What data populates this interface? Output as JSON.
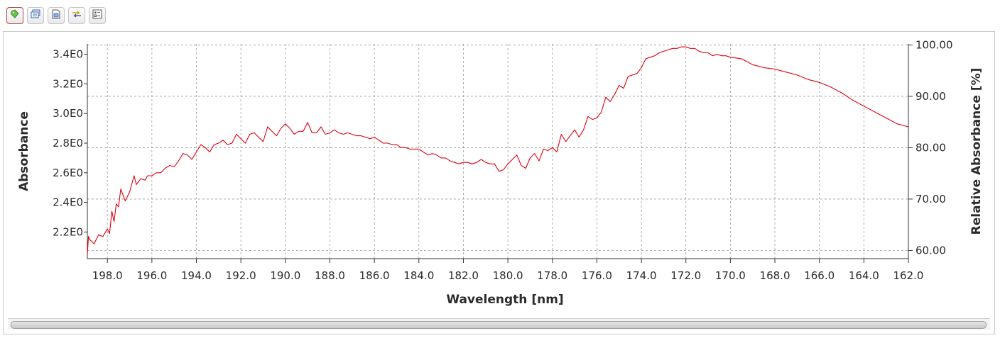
{
  "toolbar": {
    "buttons": [
      {
        "icon": "tag-icon"
      },
      {
        "icon": "notes-icon"
      },
      {
        "icon": "document-icon"
      },
      {
        "icon": "switch-arrows-icon"
      },
      {
        "icon": "settings-list-icon"
      }
    ]
  },
  "colors": {
    "series": "#e3000f",
    "grid": "#9a9a9a",
    "axis": "#333333"
  },
  "chart_data": {
    "type": "line",
    "title": "",
    "xlabel": "Wavelength [nm]",
    "ylabel": "Absorbance",
    "ylabel_right": "Relative Absorbance [%]",
    "xlim": [
      198.9,
      162.0
    ],
    "x_reversed": true,
    "ylim": [
      2.02,
      3.47
    ],
    "ylim_right": [
      58.4,
      100.2
    ],
    "x_ticks": [
      198.0,
      196.0,
      194.0,
      192.0,
      190.0,
      188.0,
      186.0,
      184.0,
      182.0,
      180.0,
      178.0,
      176.0,
      174.0,
      172.0,
      170.0,
      168.0,
      166.0,
      164.0,
      162.0
    ],
    "x_tick_labels": [
      "198.0",
      "196.0",
      "194.0",
      "192.0",
      "190.0",
      "188.0",
      "186.0",
      "184.0",
      "182.0",
      "180.0",
      "178.0",
      "176.0",
      "174.0",
      "172.0",
      "170.0",
      "168.0",
      "166.0",
      "164.0",
      "162.0"
    ],
    "y_ticks": [
      2.2,
      2.4,
      2.6,
      2.8,
      3.0,
      3.2,
      3.4
    ],
    "y_tick_labels": [
      "2.2E0",
      "2.4E0",
      "2.6E0",
      "2.8E0",
      "3.0E0",
      "3.2E0",
      "3.4E0"
    ],
    "y_right_ticks": [
      60,
      70,
      80,
      90,
      100
    ],
    "y_right_tick_labels": [
      "60.00",
      "70.00",
      "80.00",
      "90.00",
      "100.00"
    ],
    "grid": true,
    "series": [
      {
        "x": [
          198.9,
          198.85,
          198.8,
          198.6,
          198.4,
          198.2,
          198.0,
          197.9,
          197.8,
          197.7,
          197.6,
          197.5,
          197.4,
          197.2,
          197.0,
          196.8,
          196.7,
          196.5,
          196.3,
          196.2,
          196.0,
          195.8,
          195.6,
          195.4,
          195.2,
          195.0,
          194.8,
          194.6,
          194.4,
          194.2,
          194.0,
          193.8,
          193.6,
          193.4,
          193.2,
          193.0,
          192.8,
          192.6,
          192.4,
          192.2,
          192.0,
          191.8,
          191.6,
          191.4,
          191.2,
          191.0,
          190.8,
          190.6,
          190.4,
          190.2,
          190.0,
          189.8,
          189.6,
          189.4,
          189.2,
          189.0,
          188.8,
          188.6,
          188.4,
          188.2,
          188.0,
          187.8,
          187.6,
          187.4,
          187.2,
          187.0,
          186.8,
          186.6,
          186.4,
          186.2,
          186.0,
          185.8,
          185.6,
          185.4,
          185.2,
          185.0,
          184.8,
          184.6,
          184.4,
          184.2,
          184.0,
          183.8,
          183.6,
          183.4,
          183.2,
          183.0,
          182.8,
          182.6,
          182.4,
          182.2,
          182.0,
          181.8,
          181.6,
          181.4,
          181.2,
          181.0,
          180.8,
          180.6,
          180.4,
          180.2,
          180.0,
          179.8,
          179.6,
          179.4,
          179.2,
          179.0,
          178.8,
          178.6,
          178.4,
          178.2,
          178.0,
          177.8,
          177.6,
          177.4,
          177.2,
          177.0,
          176.8,
          176.6,
          176.4,
          176.2,
          176.0,
          175.8,
          175.6,
          175.4,
          175.2,
          175.0,
          174.8,
          174.6,
          174.4,
          174.2,
          174.0,
          173.8,
          173.6,
          173.4,
          173.2,
          173.0,
          172.8,
          172.6,
          172.4,
          172.2,
          172.0,
          171.8,
          171.6,
          171.4,
          171.2,
          171.0,
          170.8,
          170.6,
          170.4,
          170.2,
          170.0,
          169.5,
          169.0,
          168.5,
          168.0,
          167.5,
          167.0,
          166.5,
          166.0,
          165.5,
          165.0,
          164.5,
          164.0,
          163.5,
          163.0,
          162.5,
          162.0
        ],
        "y": [
          2.05,
          2.17,
          2.15,
          2.12,
          2.18,
          2.17,
          2.22,
          2.19,
          2.34,
          2.27,
          2.39,
          2.37,
          2.49,
          2.41,
          2.47,
          2.58,
          2.52,
          2.56,
          2.55,
          2.58,
          2.58,
          2.6,
          2.6,
          2.63,
          2.65,
          2.64,
          2.68,
          2.73,
          2.72,
          2.69,
          2.74,
          2.79,
          2.77,
          2.74,
          2.79,
          2.8,
          2.82,
          2.79,
          2.8,
          2.86,
          2.83,
          2.8,
          2.86,
          2.87,
          2.84,
          2.81,
          2.91,
          2.88,
          2.85,
          2.9,
          2.93,
          2.9,
          2.86,
          2.88,
          2.88,
          2.94,
          2.87,
          2.87,
          2.91,
          2.86,
          2.87,
          2.89,
          2.87,
          2.86,
          2.87,
          2.86,
          2.85,
          2.85,
          2.84,
          2.83,
          2.84,
          2.82,
          2.8,
          2.8,
          2.79,
          2.79,
          2.77,
          2.77,
          2.76,
          2.76,
          2.76,
          2.74,
          2.72,
          2.73,
          2.72,
          2.7,
          2.7,
          2.68,
          2.67,
          2.66,
          2.67,
          2.67,
          2.66,
          2.67,
          2.69,
          2.67,
          2.66,
          2.66,
          2.61,
          2.62,
          2.66,
          2.69,
          2.72,
          2.65,
          2.63,
          2.7,
          2.73,
          2.68,
          2.76,
          2.75,
          2.77,
          2.74,
          2.86,
          2.81,
          2.85,
          2.89,
          2.84,
          2.89,
          2.98,
          2.96,
          2.97,
          3.01,
          3.11,
          3.08,
          3.13,
          3.19,
          3.17,
          3.25,
          3.26,
          3.27,
          3.31,
          3.37,
          3.38,
          3.39,
          3.41,
          3.42,
          3.43,
          3.44,
          3.44,
          3.45,
          3.45,
          3.44,
          3.44,
          3.42,
          3.41,
          3.41,
          3.39,
          3.4,
          3.39,
          3.39,
          3.38,
          3.37,
          3.33,
          3.31,
          3.3,
          3.28,
          3.26,
          3.23,
          3.21,
          3.18,
          3.14,
          3.09,
          3.05,
          3.01,
          2.97,
          2.93,
          2.91
        ]
      }
    ]
  }
}
